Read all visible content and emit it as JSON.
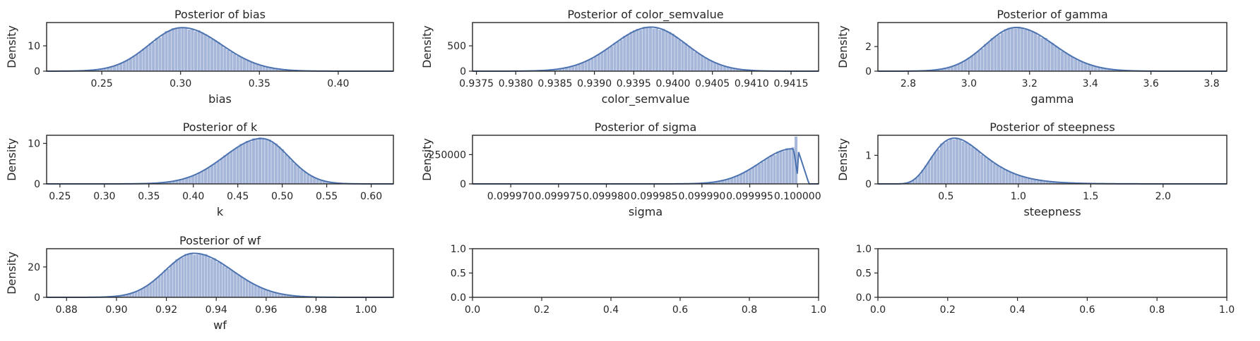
{
  "style": {
    "hist_color": "#a6b7d9",
    "kde_color": "#4c72b0"
  },
  "chart_data": [
    {
      "type": "area",
      "title": "Posterior of bias",
      "xlabel": "bias",
      "ylabel": "Density",
      "xlim": [
        0.215,
        0.435
      ],
      "ylim": [
        0,
        19.2
      ],
      "xticks": [
        0.25,
        0.3,
        0.35,
        0.4
      ],
      "xticklabels": [
        "0.25",
        "0.30",
        "0.35",
        "0.40"
      ],
      "yticks": [
        0,
        10
      ],
      "yticklabels": [
        "0",
        "10"
      ],
      "dist": {
        "kind": "normal",
        "mean": 0.301,
        "left_sd": 0.021,
        "right_sd": 0.025,
        "peak": 17.2,
        "range": [
          0.222,
          0.428
        ],
        "bins": 100
      }
    },
    {
      "type": "area",
      "title": "Posterior of color_semvalue",
      "xlabel": "color_semvalue",
      "ylabel": "Density",
      "xlim": [
        0.93745,
        0.94185
      ],
      "ylim": [
        0,
        960
      ],
      "xticks": [
        0.9375,
        0.938,
        0.9385,
        0.939,
        0.9395,
        0.94,
        0.9405,
        0.941,
        0.9415
      ],
      "xticklabels": [
        "0.9375",
        "0.9380",
        "0.9385",
        "0.9390",
        "0.9395",
        "0.9400",
        "0.9405",
        "0.9410",
        "0.9415"
      ],
      "yticks": [
        0,
        500
      ],
      "yticklabels": [
        "0",
        "500"
      ],
      "dist": {
        "kind": "normal",
        "mean": 0.93972,
        "left_sd": 0.00048,
        "right_sd": 0.00045,
        "peak": 870,
        "range": [
          0.9376,
          0.9417
        ],
        "bins": 100
      }
    },
    {
      "type": "area",
      "title": "Posterior of gamma",
      "xlabel": "gamma",
      "ylabel": "Density",
      "xlim": [
        2.7,
        3.85
      ],
      "ylim": [
        0,
        3.95
      ],
      "xticks": [
        2.8,
        3.0,
        3.2,
        3.4,
        3.6,
        3.8
      ],
      "xticklabels": [
        "2.8",
        "3.0",
        "3.2",
        "3.4",
        "3.6",
        "3.8"
      ],
      "yticks": [
        0,
        2
      ],
      "yticklabels": [
        "0",
        "2"
      ],
      "dist": {
        "kind": "normal",
        "mean": 3.155,
        "left_sd": 0.1,
        "right_sd": 0.125,
        "peak": 3.55,
        "range": [
          2.73,
          3.83
        ],
        "bins": 100
      }
    },
    {
      "type": "area",
      "title": "Posterior of k",
      "xlabel": "k",
      "ylabel": "Density",
      "xlim": [
        0.235,
        0.625
      ],
      "ylim": [
        0,
        12
      ],
      "xticks": [
        0.25,
        0.3,
        0.35,
        0.4,
        0.45,
        0.5,
        0.55,
        0.6
      ],
      "xticklabels": [
        "0.25",
        "0.30",
        "0.35",
        "0.40",
        "0.45",
        "0.50",
        "0.55",
        "0.60"
      ],
      "yticks": [
        0,
        10
      ],
      "yticklabels": [
        "0",
        "10"
      ],
      "dist": {
        "kind": "normal",
        "mean": 0.477,
        "left_sd": 0.042,
        "right_sd": 0.03,
        "peak": 11.2,
        "range": [
          0.25,
          0.61
        ],
        "bins": 100
      }
    },
    {
      "type": "area",
      "title": "Posterior of sigma",
      "xlabel": "sigma",
      "ylabel": "Density",
      "xlim": [
        0.099966,
        0.1000022
      ],
      "ylim": [
        0,
        415000
      ],
      "xticks": [
        0.09997,
        0.099975,
        0.09998,
        0.099985,
        0.09999,
        0.099995,
        0.1
      ],
      "xticklabels": [
        "0.099970",
        "0.099975",
        "0.099980",
        "0.099985",
        "0.099990",
        "0.099995",
        "0.100000"
      ],
      "yticks": [
        0,
        250000
      ],
      "yticklabels": [
        "0",
        "250000"
      ],
      "dist": {
        "kind": "halfspike",
        "mean": 0.0999995,
        "left_sd": 3.4e-06,
        "right_sd": 3e-07,
        "peak": 300000,
        "range": [
          0.099968,
          0.1
        ],
        "bins": 100,
        "spike": 405000
      }
    },
    {
      "type": "area",
      "title": "Posterior of steepness",
      "xlabel": "steepness",
      "ylabel": "Density",
      "xlim": [
        0.03,
        2.44
      ],
      "ylim": [
        0,
        1.7
      ],
      "xticks": [
        0.5,
        1.0,
        1.5,
        2.0
      ],
      "xticklabels": [
        "0.5",
        "1.0",
        "1.5",
        "2.0"
      ],
      "yticks": [
        0,
        1
      ],
      "yticklabels": [
        "0",
        "1"
      ],
      "dist": {
        "kind": "lognormal",
        "mode": 0.62,
        "sigma": 0.32,
        "peak": 1.52,
        "range": [
          0.2,
          2.35
        ],
        "bins": 100
      }
    },
    {
      "type": "area",
      "title": "Posterior of wf",
      "xlabel": "wf",
      "ylabel": "Density",
      "xlim": [
        0.872,
        1.011
      ],
      "ylim": [
        0,
        32
      ],
      "xticks": [
        0.88,
        0.9,
        0.92,
        0.94,
        0.96,
        0.98,
        1.0
      ],
      "xticklabels": [
        "0.88",
        "0.90",
        "0.92",
        "0.94",
        "0.96",
        "0.98",
        "1.00"
      ],
      "yticks": [
        0,
        20
      ],
      "yticklabels": [
        "0",
        "20"
      ],
      "dist": {
        "kind": "normal",
        "mean": 0.931,
        "left_sd": 0.0115,
        "right_sd": 0.0155,
        "peak": 29,
        "range": [
          0.885,
          1.002
        ],
        "bins": 100
      }
    },
    {
      "type": "area",
      "title": "",
      "xlabel": "",
      "ylabel": "",
      "xlim": [
        0,
        1
      ],
      "ylim": [
        0,
        1
      ],
      "xticks": [
        0,
        0.2,
        0.4,
        0.6,
        0.8,
        1.0
      ],
      "xticklabels": [
        "0.0",
        "0.2",
        "0.4",
        "0.6",
        "0.8",
        "1.0"
      ],
      "yticks": [
        0,
        0.5,
        1.0
      ],
      "yticklabels": [
        "0.0",
        "0.5",
        "1.0"
      ],
      "empty": true
    },
    {
      "type": "area",
      "title": "",
      "xlabel": "",
      "ylabel": "",
      "xlim": [
        0,
        1
      ],
      "ylim": [
        0,
        1
      ],
      "xticks": [
        0,
        0.2,
        0.4,
        0.6,
        0.8,
        1.0
      ],
      "xticklabels": [
        "0.0",
        "0.2",
        "0.4",
        "0.6",
        "0.8",
        "1.0"
      ],
      "yticks": [
        0,
        0.5,
        1.0
      ],
      "yticklabels": [
        "0.0",
        "0.5",
        "1.0"
      ],
      "empty": true
    }
  ]
}
